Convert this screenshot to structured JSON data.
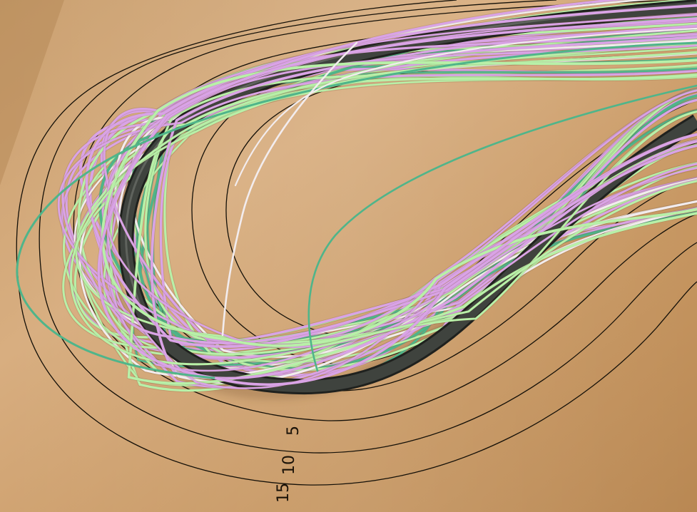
{
  "scene": {
    "description_colors": {
      "background": "#c79a66",
      "background_light": "#d9b184",
      "background_dark": "#b58552",
      "contour": "#141008",
      "ribbon": "#3a3d39",
      "strand_green": "#b8f0a8",
      "strand_teal": "#4fb58a",
      "strand_pink": "#d9a3e6",
      "strand_white": "#f2ecee"
    },
    "contour_labels": [
      {
        "text": "5"
      },
      {
        "text": "10"
      },
      {
        "text": "15"
      }
    ]
  }
}
